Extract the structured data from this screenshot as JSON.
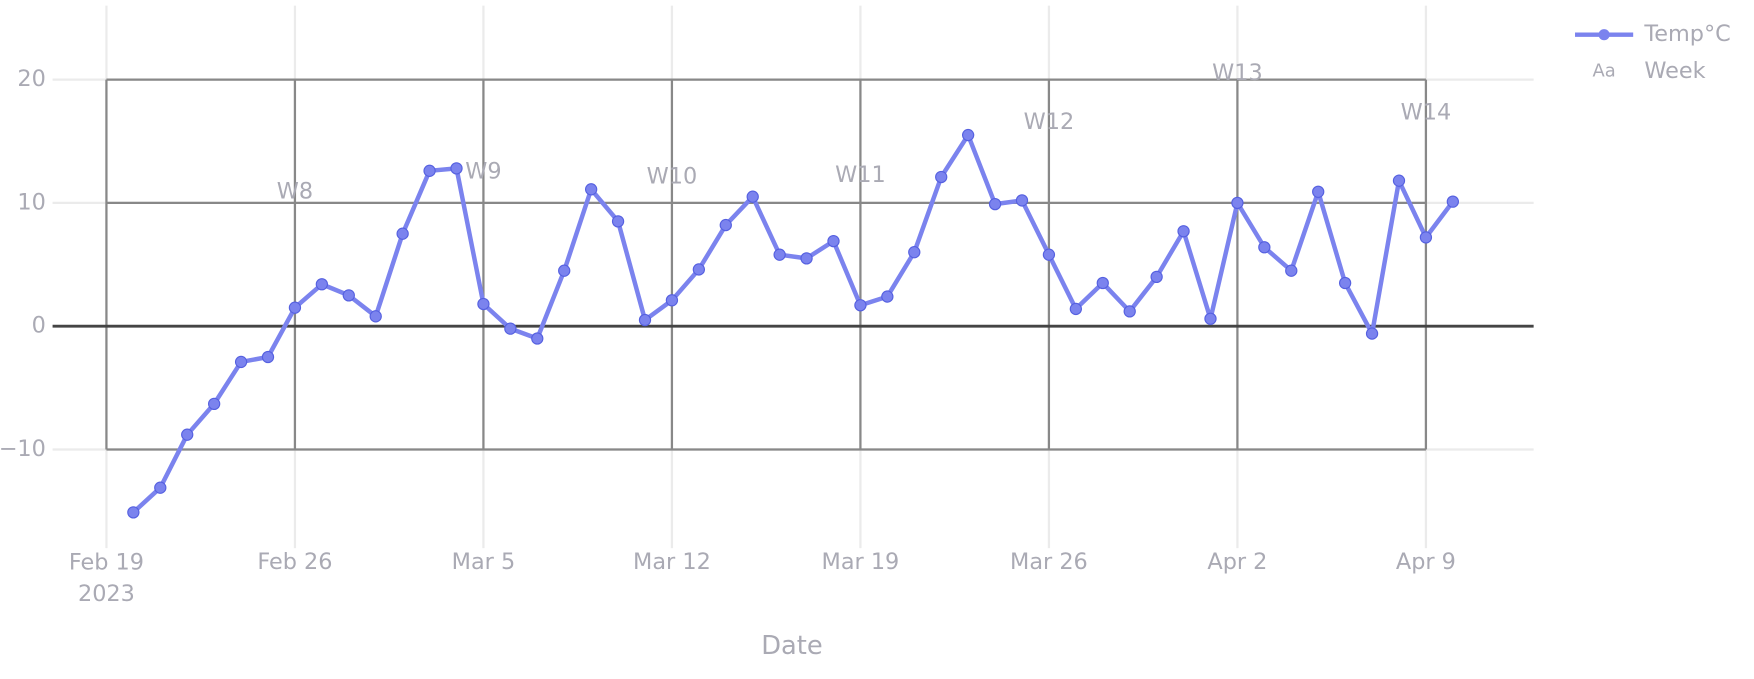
{
  "chart_data": {
    "type": "line",
    "x_label": "Date",
    "x": [
      "2023-02-20",
      "2023-02-21",
      "2023-02-22",
      "2023-02-23",
      "2023-02-24",
      "2023-02-25",
      "2023-02-26",
      "2023-02-27",
      "2023-02-28",
      "2023-03-01",
      "2023-03-02",
      "2023-03-03",
      "2023-03-04",
      "2023-03-05",
      "2023-03-06",
      "2023-03-07",
      "2023-03-08",
      "2023-03-09",
      "2023-03-10",
      "2023-03-11",
      "2023-03-12",
      "2023-03-13",
      "2023-03-14",
      "2023-03-15",
      "2023-03-16",
      "2023-03-17",
      "2023-03-18",
      "2023-03-19",
      "2023-03-20",
      "2023-03-21",
      "2023-03-22",
      "2023-03-23",
      "2023-03-24",
      "2023-03-25",
      "2023-03-26",
      "2023-03-27",
      "2023-03-28",
      "2023-03-29",
      "2023-03-30",
      "2023-03-31",
      "2023-04-01",
      "2023-04-02",
      "2023-04-03",
      "2023-04-04",
      "2023-04-05",
      "2023-04-06",
      "2023-04-07",
      "2023-04-08",
      "2023-04-09",
      "2023-04-10"
    ],
    "series": [
      {
        "name": "Temp°C",
        "color": "#7b83ee",
        "values": [
          -15.1,
          -13.1,
          -8.8,
          -6.3,
          -2.9,
          -2.5,
          1.5,
          3.4,
          2.5,
          0.8,
          7.5,
          12.6,
          12.8,
          1.8,
          -0.2,
          -1.0,
          4.5,
          11.1,
          8.5,
          0.5,
          2.1,
          4.6,
          8.2,
          10.5,
          5.8,
          5.5,
          6.9,
          1.7,
          2.4,
          6.0,
          12.1,
          15.5,
          9.9,
          10.2,
          5.8,
          1.4,
          3.5,
          1.2,
          4.0,
          7.7,
          0.6,
          10.0,
          6.4,
          4.5,
          10.9,
          3.5,
          -0.6,
          11.8,
          7.2,
          10.1
        ]
      }
    ],
    "week_series": {
      "name": "Week",
      "legend_symbol": "Aa",
      "x": [
        "2023-02-26",
        "2023-03-05",
        "2023-03-12",
        "2023-03-19",
        "2023-03-26",
        "2023-04-02",
        "2023-04-09"
      ],
      "values": [
        10.9,
        12.5,
        12.1,
        12.2,
        16.5,
        20.5,
        17.3
      ],
      "labels": [
        "W8",
        "W9",
        "W10",
        "W11",
        "W12",
        "W13",
        "W14"
      ]
    },
    "xlim": [
      "2023-02-17",
      "2023-04-13"
    ],
    "xticks": [
      {
        "value": "2023-02-19",
        "label": "Feb 19\n2023"
      },
      {
        "value": "2023-02-26",
        "label": "Feb 26"
      },
      {
        "value": "2023-03-05",
        "label": "Mar 5"
      },
      {
        "value": "2023-03-12",
        "label": "Mar 12"
      },
      {
        "value": "2023-03-19",
        "label": "Mar 19"
      },
      {
        "value": "2023-03-26",
        "label": "Mar 26"
      },
      {
        "value": "2023-04-02",
        "label": "Apr 2"
      },
      {
        "value": "2023-04-09",
        "label": "Apr 9"
      }
    ],
    "ylim": [
      -18,
      26
    ],
    "yticks": [
      {
        "value": -10,
        "label": "−10"
      },
      0,
      10,
      20
    ],
    "grid": true
  }
}
